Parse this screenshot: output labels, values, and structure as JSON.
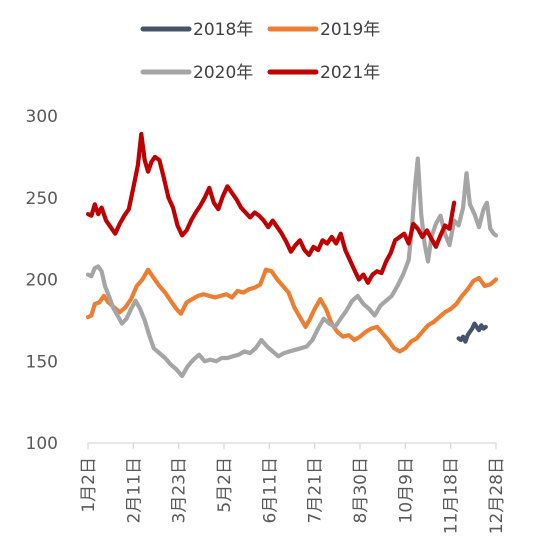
{
  "chart_data": {
    "type": "line",
    "title": "",
    "xlabel": "",
    "ylabel": "",
    "ylim": [
      100,
      300
    ],
    "y_ticks": [
      100,
      150,
      200,
      250,
      300
    ],
    "x_ticks": [
      "1月2日",
      "2月11日",
      "3月23日",
      "5月2日",
      "6月11日",
      "7月21日",
      "8月30日",
      "10月9日",
      "11月18日",
      "12月28日"
    ],
    "x_domain": [
      "1月2日",
      "12月28日"
    ],
    "grid": false,
    "legend_position": "top",
    "series": [
      {
        "name": "2018年",
        "color": "#44546a",
        "points": [
          [
            "11月25日",
            164
          ],
          [
            "11月27日",
            163
          ],
          [
            "11月29日",
            165
          ],
          [
            "12月1日",
            162
          ],
          [
            "12月3日",
            166
          ],
          [
            "12月5日",
            168
          ],
          [
            "12月7日",
            170
          ],
          [
            "12月9日",
            173
          ],
          [
            "12月11日",
            171
          ],
          [
            "12月13日",
            169
          ],
          [
            "12月15日",
            172
          ],
          [
            "12月17日",
            170
          ],
          [
            "12月19日",
            171
          ]
        ]
      },
      {
        "name": "2019年",
        "color": "#ed7d31",
        "points": [
          [
            "1月2日",
            177
          ],
          [
            "1月5日",
            178
          ],
          [
            "1月8日",
            185
          ],
          [
            "1月12日",
            186
          ],
          [
            "1月16日",
            190
          ],
          [
            "1月20日",
            186
          ],
          [
            "1月25日",
            183
          ],
          [
            "1月30日",
            180
          ],
          [
            "2月4日",
            183
          ],
          [
            "2月9日",
            188
          ],
          [
            "2月14日",
            196
          ],
          [
            "2月19日",
            200
          ],
          [
            "2月24日",
            206
          ],
          [
            "3月1日",
            201
          ],
          [
            "3月6日",
            196
          ],
          [
            "3月11日",
            192
          ],
          [
            "3月16日",
            187
          ],
          [
            "3月21日",
            182
          ],
          [
            "3月25日",
            179
          ],
          [
            "3月30日",
            186
          ],
          [
            "4月4日",
            188
          ],
          [
            "4月9日",
            190
          ],
          [
            "4月14日",
            191
          ],
          [
            "4月19日",
            190
          ],
          [
            "4月24日",
            189
          ],
          [
            "4月29日",
            190
          ],
          [
            "5月4日",
            191
          ],
          [
            "5月9日",
            189
          ],
          [
            "5月14日",
            193
          ],
          [
            "5月19日",
            192
          ],
          [
            "5月24日",
            194
          ],
          [
            "5月29日",
            195
          ],
          [
            "6月3日",
            197
          ],
          [
            "6月8日",
            206
          ],
          [
            "6月13日",
            205
          ],
          [
            "6月18日",
            200
          ],
          [
            "6月23日",
            196
          ],
          [
            "6月28日",
            192
          ],
          [
            "7月3日",
            183
          ],
          [
            "7月8日",
            177
          ],
          [
            "7月13日",
            171
          ],
          [
            "7月17日",
            176
          ],
          [
            "7月21日",
            182
          ],
          [
            "7月26日",
            188
          ],
          [
            "7月31日",
            182
          ],
          [
            "8月5日",
            173
          ],
          [
            "8月10日",
            168
          ],
          [
            "8月15日",
            165
          ],
          [
            "8月20日",
            166
          ],
          [
            "8月25日",
            163
          ],
          [
            "8月30日",
            165
          ],
          [
            "9月4日",
            168
          ],
          [
            "9月9日",
            170
          ],
          [
            "9月14日",
            171
          ],
          [
            "9月19日",
            167
          ],
          [
            "9月24日",
            163
          ],
          [
            "9月29日",
            158
          ],
          [
            "10月4日",
            156
          ],
          [
            "10月9日",
            158
          ],
          [
            "10月14日",
            162
          ],
          [
            "10月19日",
            164
          ],
          [
            "10月24日",
            168
          ],
          [
            "10月29日",
            172
          ],
          [
            "11月3日",
            174
          ],
          [
            "11月8日",
            177
          ],
          [
            "11月13日",
            180
          ],
          [
            "11月18日",
            182
          ],
          [
            "11月23日",
            185
          ],
          [
            "11月28日",
            190
          ],
          [
            "12月3日",
            194
          ],
          [
            "12月8日",
            199
          ],
          [
            "12月13日",
            201
          ],
          [
            "12月18日",
            196
          ],
          [
            "12月23日",
            197
          ],
          [
            "12月28日",
            200
          ]
        ]
      },
      {
        "name": "2020年",
        "color": "#a5a5a5",
        "points": [
          [
            "1月2日",
            203
          ],
          [
            "1月5日",
            202
          ],
          [
            "1月8日",
            207
          ],
          [
            "1月11日",
            208
          ],
          [
            "1月14日",
            205
          ],
          [
            "1月17日",
            196
          ],
          [
            "1月21日",
            189
          ],
          [
            "1月24日",
            183
          ],
          [
            "1月28日",
            178
          ],
          [
            "2月1日",
            173
          ],
          [
            "2月5日",
            176
          ],
          [
            "2月9日",
            182
          ],
          [
            "2月13日",
            187
          ],
          [
            "2月17日",
            182
          ],
          [
            "2月21日",
            175
          ],
          [
            "2月25日",
            166
          ],
          [
            "3月1日",
            158
          ],
          [
            "3月6日",
            155
          ],
          [
            "3月11日",
            152
          ],
          [
            "3月16日",
            148
          ],
          [
            "3月21日",
            145
          ],
          [
            "3月26日",
            141
          ],
          [
            "3月31日",
            147
          ],
          [
            "4月5日",
            151
          ],
          [
            "4月10日",
            154
          ],
          [
            "4月15日",
            150
          ],
          [
            "4月20日",
            151
          ],
          [
            "4月25日",
            150
          ],
          [
            "4月30日",
            152
          ],
          [
            "5月5日",
            152
          ],
          [
            "5月10日",
            153
          ],
          [
            "5月15日",
            154
          ],
          [
            "5月20日",
            156
          ],
          [
            "5月25日",
            155
          ],
          [
            "5月30日",
            158
          ],
          [
            "6月4日",
            163
          ],
          [
            "6月9日",
            159
          ],
          [
            "6月14日",
            156
          ],
          [
            "6月19日",
            153
          ],
          [
            "6月24日",
            155
          ],
          [
            "6月29日",
            156
          ],
          [
            "7月4日",
            157
          ],
          [
            "7月9日",
            158
          ],
          [
            "7月14日",
            159
          ],
          [
            "7月19日",
            163
          ],
          [
            "7月24日",
            170
          ],
          [
            "7月29日",
            176
          ],
          [
            "8月3日",
            173
          ],
          [
            "8月8日",
            171
          ],
          [
            "8月13日",
            176
          ],
          [
            "8月18日",
            181
          ],
          [
            "8月23日",
            187
          ],
          [
            "8月28日",
            190
          ],
          [
            "9月2日",
            185
          ],
          [
            "9月7日",
            182
          ],
          [
            "9月12日",
            178
          ],
          [
            "9月17日",
            184
          ],
          [
            "9月22日",
            187
          ],
          [
            "9月27日",
            190
          ],
          [
            "10月2日",
            196
          ],
          [
            "10月7日",
            203
          ],
          [
            "10月12日",
            212
          ],
          [
            "10月15日",
            233
          ],
          [
            "10月18日",
            260
          ],
          [
            "10月20日",
            274
          ],
          [
            "10月23日",
            240
          ],
          [
            "10月26日",
            222
          ],
          [
            "10月29日",
            211
          ],
          [
            "11月1日",
            226
          ],
          [
            "11月5日",
            234
          ],
          [
            "11月9日",
            239
          ],
          [
            "11月13日",
            228
          ],
          [
            "11月17日",
            221
          ],
          [
            "11月21日",
            236
          ],
          [
            "11月25日",
            233
          ],
          [
            "11月29日",
            244
          ],
          [
            "12月2日",
            265
          ],
          [
            "12月5日",
            246
          ],
          [
            "12月9日",
            240
          ],
          [
            "12月13日",
            232
          ],
          [
            "12月17日",
            243
          ],
          [
            "12月20日",
            247
          ],
          [
            "12月23日",
            231
          ],
          [
            "12月26日",
            228
          ],
          [
            "12月28日",
            227
          ]
        ]
      },
      {
        "name": "2021年",
        "color": "#c00000",
        "points": [
          [
            "1月2日",
            240
          ],
          [
            "1月5日",
            239
          ],
          [
            "1月8日",
            246
          ],
          [
            "1月11日",
            240
          ],
          [
            "1月14日",
            244
          ],
          [
            "1月18日",
            236
          ],
          [
            "1月22日",
            232
          ],
          [
            "1月26日",
            228
          ],
          [
            "1月30日",
            234
          ],
          [
            "2月3日",
            239
          ],
          [
            "2月7日",
            243
          ],
          [
            "2月11日",
            256
          ],
          [
            "2月15日",
            270
          ],
          [
            "2月18日",
            289
          ],
          [
            "2月21日",
            273
          ],
          [
            "2月24日",
            266
          ],
          [
            "2月27日",
            272
          ],
          [
            "3月2日",
            275
          ],
          [
            "3月6日",
            273
          ],
          [
            "3月10日",
            262
          ],
          [
            "3月14日",
            250
          ],
          [
            "3月18日",
            244
          ],
          [
            "3月22日",
            233
          ],
          [
            "3月26日",
            227
          ],
          [
            "3月30日",
            230
          ],
          [
            "4月3日",
            236
          ],
          [
            "4月7日",
            241
          ],
          [
            "4月11日",
            245
          ],
          [
            "4月15日",
            250
          ],
          [
            "4月19日",
            256
          ],
          [
            "4月23日",
            247
          ],
          [
            "4月27日",
            243
          ],
          [
            "5月1日",
            251
          ],
          [
            "5月5日",
            257
          ],
          [
            "5月9日",
            253
          ],
          [
            "5月13日",
            249
          ],
          [
            "5月17日",
            244
          ],
          [
            "5月21日",
            241
          ],
          [
            "5月25日",
            238
          ],
          [
            "5月29日",
            241
          ],
          [
            "6月2日",
            239
          ],
          [
            "6月6日",
            236
          ],
          [
            "6月10日",
            232
          ],
          [
            "6月14日",
            236
          ],
          [
            "6月18日",
            232
          ],
          [
            "6月22日",
            228
          ],
          [
            "6月26日",
            223
          ],
          [
            "6月30日",
            217
          ],
          [
            "7月4日",
            221
          ],
          [
            "7月8日",
            224
          ],
          [
            "7月12日",
            218
          ],
          [
            "7月16日",
            215
          ],
          [
            "7月20日",
            220
          ],
          [
            "7月24日",
            218
          ],
          [
            "7月28日",
            224
          ],
          [
            "8月1日",
            222
          ],
          [
            "8月5日",
            226
          ],
          [
            "8月9日",
            222
          ],
          [
            "8月13日",
            228
          ],
          [
            "8月17日",
            218
          ],
          [
            "8月21日",
            212
          ],
          [
            "8月25日",
            206
          ],
          [
            "8月29日",
            200
          ],
          [
            "9月2日",
            203
          ],
          [
            "9月6日",
            198
          ],
          [
            "9月10日",
            203
          ],
          [
            "9月14日",
            205
          ],
          [
            "9月18日",
            204
          ],
          [
            "9月22日",
            211
          ],
          [
            "9月26日",
            216
          ],
          [
            "9月30日",
            224
          ],
          [
            "10月4日",
            226
          ],
          [
            "10月8日",
            228
          ],
          [
            "10月12日",
            222
          ],
          [
            "10月16日",
            234
          ],
          [
            "10月20日",
            231
          ],
          [
            "10月24日",
            226
          ],
          [
            "10月28日",
            230
          ],
          [
            "11月1日",
            225
          ],
          [
            "11月5日",
            220
          ],
          [
            "11月9日",
            227
          ],
          [
            "11月13日",
            233
          ],
          [
            "11月17日",
            231
          ],
          [
            "11月21日",
            247
          ]
        ]
      }
    ]
  }
}
